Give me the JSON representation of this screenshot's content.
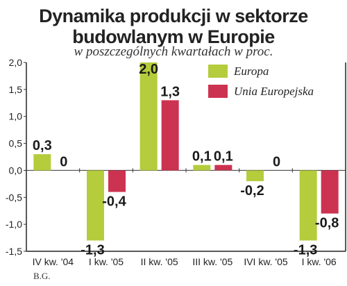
{
  "title_lines": [
    "Dynamika produkcji w sektorze",
    "budowlanym w Europie"
  ],
  "subtitle": "w poszczególnych kwartałach w proc.",
  "source": "B.G.",
  "colors": {
    "europa": "#b5cc3c",
    "unia": "#cc3350",
    "axis": "#333333",
    "frame": "#222222"
  },
  "chart_data": {
    "type": "bar",
    "categories": [
      "IV kw. '04",
      "I kw. '05",
      "II kw. '05",
      "III kw. '05",
      "IVI kw. '05",
      "I kw. '06"
    ],
    "series": [
      {
        "name": "Europa",
        "values": [
          0.3,
          -1.3,
          2.0,
          0.1,
          -0.2,
          -1.3
        ],
        "labels": [
          "0,3",
          "-1,3",
          "2,0",
          "0,1",
          "-0,2",
          "-1,3"
        ]
      },
      {
        "name": "Unia Europejska",
        "values": [
          0,
          -0.4,
          1.3,
          0.1,
          0,
          -0.8
        ],
        "labels": [
          "0",
          "-0,4",
          "1,3",
          "0,1",
          "0",
          "-0,8"
        ]
      }
    ],
    "ylim": [
      -1.5,
      2.0
    ],
    "yticks": [
      2.0,
      1.5,
      1.0,
      0.5,
      0.0,
      -0.5,
      -1.0,
      -1.5
    ],
    "ytick_labels": [
      "2,0",
      "1,5",
      "1,0",
      "0,5",
      "0,0",
      "-0,5",
      "-1,0",
      "-1,5"
    ],
    "legend_position": "top-right",
    "grid": false
  }
}
